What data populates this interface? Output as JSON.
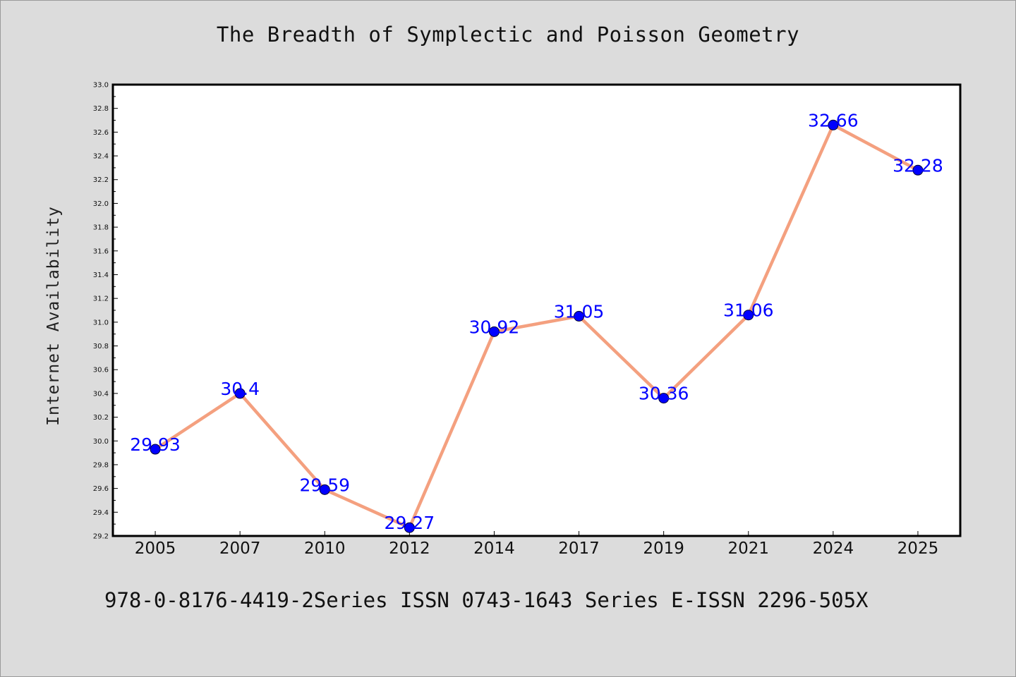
{
  "title": "The Breadth of Symplectic and Poisson Geometry",
  "footer": "978-0-8176-4419-2Series ISSN 0743-1643 Series E-ISSN 2296-505X",
  "chart_data": {
    "type": "line",
    "title": "The Breadth of Symplectic and Poisson Geometry",
    "xlabel": "",
    "ylabel": "Internet Availability",
    "categories": [
      "2005",
      "2007",
      "2010",
      "2012",
      "2014",
      "2017",
      "2019",
      "2021",
      "2024",
      "2025"
    ],
    "values": [
      29.93,
      30.4,
      29.59,
      29.27,
      30.92,
      31.05,
      30.36,
      31.06,
      32.66,
      32.28
    ],
    "data_labels": [
      "29.93",
      "30.4",
      "29.59",
      "29.27",
      "30.92",
      "31.05",
      "30.36",
      "31.06",
      "32.66",
      "32.28"
    ],
    "ylim": [
      29.2,
      33.0
    ],
    "yticks": [
      "29.2",
      "29.4",
      "29.6",
      "29.8",
      "30.0",
      "30.2",
      "30.4",
      "30.6",
      "30.8",
      "31.0",
      "31.2",
      "31.4",
      "31.6",
      "31.8",
      "32.0",
      "32.2",
      "32.4",
      "32.6",
      "32.8",
      "33.0"
    ],
    "grid": false,
    "legend": "none",
    "colors": {
      "line": "#f4a07f",
      "marker": "#0000ff",
      "label": "#0000ff",
      "plot_background": "#ffffff",
      "page_background": "#dcdcdc"
    }
  }
}
